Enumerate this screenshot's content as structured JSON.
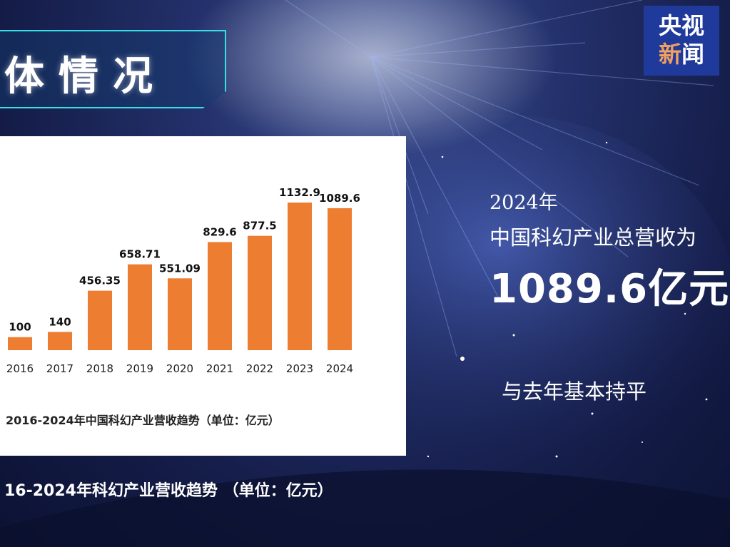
{
  "header": {
    "title": "体情况",
    "logo_line1": "央视",
    "logo_line2_a": "新",
    "logo_line2_b": "闻"
  },
  "info": {
    "year": "2024年",
    "headline": "中国科幻产业总营收为",
    "value": "1089.6亿元",
    "note": "与去年基本持平"
  },
  "footer": {
    "caption": "16-2024年科幻产业营收趋势  （单位：亿元）"
  },
  "chart_data": {
    "type": "bar",
    "title": "2016-2024年中国科幻产业营收趋势（单位：亿元）",
    "categories": [
      "2016",
      "2017",
      "2018",
      "2019",
      "2020",
      "2021",
      "2022",
      "2023",
      "2024"
    ],
    "values": [
      100,
      140,
      456.35,
      658.71,
      551.09,
      829.6,
      877.5,
      1132.9,
      1089.6
    ],
    "labels": [
      "100",
      "140",
      "456.35",
      "658.71",
      "551.09",
      "829.6",
      "877.5",
      "1132.9",
      "1089.6"
    ],
    "ylim": [
      0,
      1132.9
    ],
    "bar_color": "#ed7d31",
    "grid": false,
    "legend": false
  },
  "colors": {
    "accent": "#37e0e8",
    "logo_bg": "#1f3a9a"
  }
}
